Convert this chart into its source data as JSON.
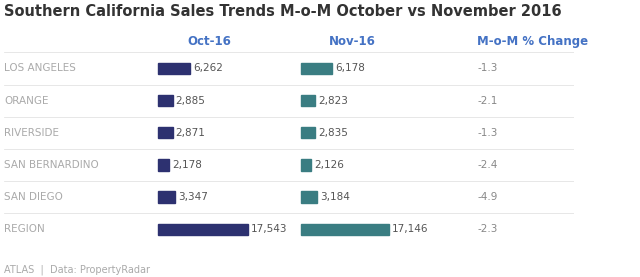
{
  "title": "Southern California Sales Trends M-o-M October vs November 2016",
  "categories": [
    "LOS ANGELES",
    "ORANGE",
    "RIVERSIDE",
    "SAN BERNARDINO",
    "SAN DIEGO",
    "REGION"
  ],
  "oct_values": [
    6262,
    2885,
    2871,
    2178,
    3347,
    17543
  ],
  "nov_values": [
    6178,
    2823,
    2835,
    2126,
    3184,
    17146
  ],
  "mom_changes": [
    "-1.3",
    "-2.1",
    "-1.3",
    "-2.4",
    "-4.9",
    "-2.3"
  ],
  "oct_label": "Oct-16",
  "nov_label": "Nov-16",
  "mom_label": "M-o-M % Change",
  "oct_color": "#2d3170",
  "nov_color": "#3a7d82",
  "header_color": "#4472c4",
  "mom_header_color": "#4472c4",
  "label_color": "#aaaaaa",
  "value_color": "#555555",
  "mom_change_color": "#888888",
  "title_color": "#333333",
  "bg_color": "#ffffff",
  "footer_text": "ATLAS  |  Data: PropertyRadar",
  "bar_height": 0.35,
  "max_value": 20000
}
